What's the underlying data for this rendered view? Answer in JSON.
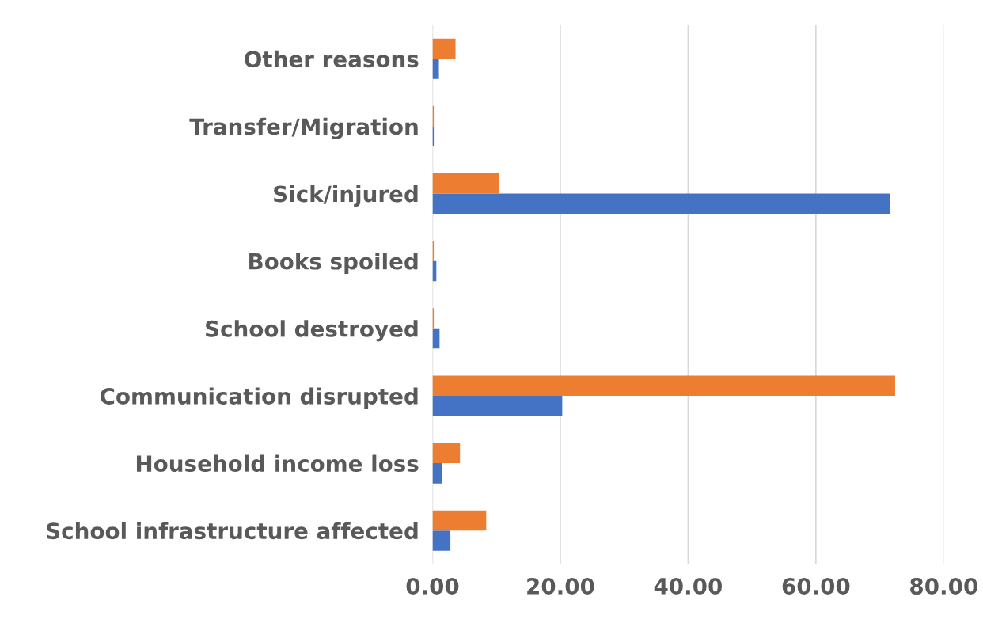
{
  "chart_data": {
    "type": "bar",
    "orientation": "horizontal",
    "categories": [
      "Other reasons",
      "Transfer/Migration",
      "Sick/injured",
      "Books spoiled",
      "School destroyed",
      "Communication disrupted",
      "Household income loss",
      "School infrastructure affected"
    ],
    "series": [
      {
        "color": "#4472c4",
        "values": [
          1.0,
          0.2,
          71.6,
          0.6,
          1.1,
          20.3,
          1.5,
          2.8
        ]
      },
      {
        "color": "#ed7d31",
        "values": [
          3.6,
          0.2,
          10.4,
          0.2,
          0.2,
          72.4,
          4.3,
          8.4
        ]
      }
    ],
    "xlim": [
      0,
      80
    ],
    "xticks": [
      {
        "value": 0,
        "label": "0.00"
      },
      {
        "value": 20,
        "label": "20.00"
      },
      {
        "value": 40,
        "label": "40.00"
      },
      {
        "value": 60,
        "label": "60.00"
      },
      {
        "value": 80,
        "label": "80.00"
      }
    ],
    "grid": "x",
    "legend": false
  }
}
